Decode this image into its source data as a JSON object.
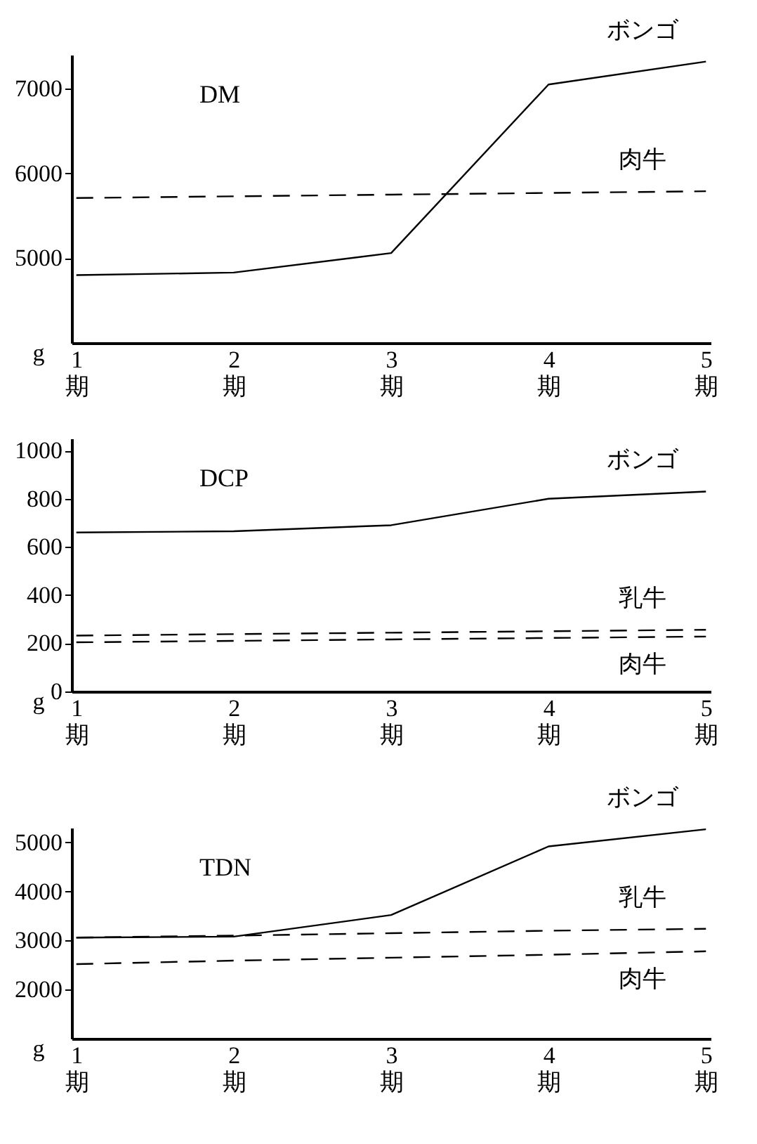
{
  "chart_data": [
    {
      "type": "line",
      "title": "DM",
      "ylabel": "g",
      "categories": [
        "1\n期",
        "2\n期",
        "3\n期",
        "4\n期",
        "5\n期"
      ],
      "ylim": [
        4000,
        7400
      ],
      "yticks": [
        5000,
        6000,
        7000
      ],
      "grid": false,
      "legend": false,
      "marker": "none",
      "series": [
        {
          "name": "ボンゴ",
          "color": "#000000",
          "line_style": "solid",
          "values": [
            4800,
            4830,
            5060,
            7050,
            7320
          ]
        },
        {
          "name": "肉牛",
          "color": "#000000",
          "line_style": "dashed",
          "values": [
            5710,
            5730,
            5750,
            5770,
            5790
          ]
        }
      ]
    },
    {
      "type": "line",
      "title": "DCP",
      "ylabel": "g",
      "categories": [
        "1\n期",
        "2\n期",
        "3\n期",
        "4\n期",
        "5\n期"
      ],
      "ylim": [
        0,
        1050
      ],
      "yticks": [
        0,
        200,
        400,
        600,
        800,
        1000
      ],
      "grid": false,
      "legend": false,
      "marker": "none",
      "series": [
        {
          "name": "ボンゴ",
          "color": "#000000",
          "line_style": "solid",
          "values": [
            660,
            665,
            690,
            800,
            830
          ]
        },
        {
          "name": "乳牛",
          "color": "#000000",
          "line_style": "dashed",
          "values": [
            232,
            238,
            244,
            250,
            256
          ]
        },
        {
          "name": "肉牛",
          "color": "#000000",
          "line_style": "dashed",
          "values": [
            204,
            210,
            216,
            222,
            228
          ]
        }
      ]
    },
    {
      "type": "line",
      "title": "TDN",
      "ylabel": "g",
      "categories": [
        "1\n期",
        "2\n期",
        "3\n期",
        "4\n期",
        "5\n期"
      ],
      "ylim": [
        1000,
        5300
      ],
      "yticks": [
        2000,
        3000,
        4000,
        5000
      ],
      "grid": false,
      "legend": false,
      "marker": "none",
      "series": [
        {
          "name": "ボンゴ",
          "color": "#000000",
          "line_style": "solid",
          "values": [
            3060,
            3080,
            3520,
            4920,
            5270
          ]
        },
        {
          "name": "乳牛",
          "color": "#000000",
          "line_style": "dashed",
          "values": [
            3060,
            3100,
            3150,
            3200,
            3240
          ]
        },
        {
          "name": "肉牛",
          "color": "#000000",
          "line_style": "dashed",
          "values": [
            2520,
            2590,
            2650,
            2710,
            2780
          ]
        }
      ]
    }
  ]
}
